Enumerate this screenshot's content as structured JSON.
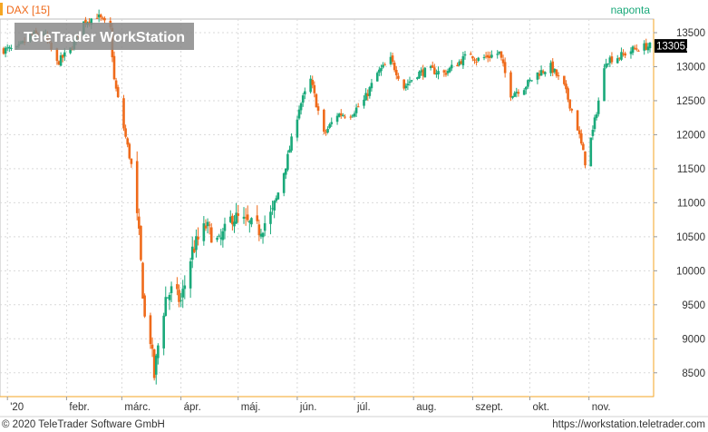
{
  "header": {
    "symbol": "DAX [15]",
    "period": "naponta",
    "watermark": "TeleTrader WorkStation"
  },
  "footer": {
    "copyright": "© 2020 TeleTrader Software GmbH",
    "url": "https://workstation.teletrader.com"
  },
  "colors": {
    "up": "#1aa97a",
    "down": "#ef6a1a",
    "accent": "#f5a623",
    "grid": "#d9d9d9",
    "axis_text": "#333333",
    "watermark_bg": "#8a8a8a",
    "last_price_bg": "#000000"
  },
  "chart_data": {
    "type": "candlestick",
    "y_ticks": [
      8500,
      9000,
      9500,
      10000,
      10500,
      11000,
      11500,
      12000,
      12500,
      13000,
      13500
    ],
    "y_tick_labels": [
      "8500",
      "9000",
      "9500",
      "10000",
      "10500",
      "11000",
      "11500",
      "12000",
      "12500",
      "13000",
      "13500"
    ],
    "ylim": [
      8150,
      13700
    ],
    "x_labels": [
      {
        "label": "'20",
        "date": "2020-01-01"
      },
      {
        "label": "febr.",
        "date": "2020-02-01"
      },
      {
        "label": "márc.",
        "date": "2020-03-01"
      },
      {
        "label": "ápr.",
        "date": "2020-04-01"
      },
      {
        "label": "máj.",
        "date": "2020-05-01"
      },
      {
        "label": "jún.",
        "date": "2020-06-01"
      },
      {
        "label": "júl.",
        "date": "2020-07-01"
      },
      {
        "label": "aug.",
        "date": "2020-08-01"
      },
      {
        "label": "szept.",
        "date": "2020-09-01"
      },
      {
        "label": "okt.",
        "date": "2020-10-01"
      },
      {
        "label": "nov.",
        "date": "2020-11-01"
      }
    ],
    "xlim": [
      "2019-12-30",
      "2020-12-03"
    ],
    "last_price": 13305.1,
    "last_price_label": "13305,1",
    "grid": true,
    "close_path": [
      [
        "2019-12-30",
        13250
      ],
      [
        "2020-01-06",
        13250
      ],
      [
        "2020-01-13",
        13450
      ],
      [
        "2020-01-20",
        13500
      ],
      [
        "2020-01-27",
        13050
      ],
      [
        "2020-02-03",
        13250
      ],
      [
        "2020-02-10",
        13650
      ],
      [
        "2020-02-17",
        13750
      ],
      [
        "2020-02-24",
        13550
      ],
      [
        "2020-02-26",
        12800
      ],
      [
        "2020-03-02",
        12100
      ],
      [
        "2020-03-06",
        11550
      ],
      [
        "2020-03-10",
        10500
      ],
      [
        "2020-03-13",
        9300
      ],
      [
        "2020-03-16",
        9000
      ],
      [
        "2020-03-18",
        8450
      ],
      [
        "2020-03-20",
        8900
      ],
      [
        "2020-03-24",
        9600
      ],
      [
        "2020-03-27",
        9700
      ],
      [
        "2020-04-01",
        9550
      ],
      [
        "2020-04-07",
        10300
      ],
      [
        "2020-04-14",
        10650
      ],
      [
        "2020-04-21",
        10400
      ],
      [
        "2020-04-28",
        10800
      ],
      [
        "2020-05-05",
        10700
      ],
      [
        "2020-05-12",
        10600
      ],
      [
        "2020-05-19",
        10850
      ],
      [
        "2020-05-26",
        11550
      ],
      [
        "2020-06-02",
        12400
      ],
      [
        "2020-06-08",
        12800
      ],
      [
        "2020-06-15",
        12000
      ],
      [
        "2020-06-22",
        12300
      ],
      [
        "2020-06-29",
        12300
      ],
      [
        "2020-07-06",
        12500
      ],
      [
        "2020-07-13",
        12900
      ],
      [
        "2020-07-20",
        13100
      ],
      [
        "2020-07-27",
        12700
      ],
      [
        "2020-08-03",
        12900
      ],
      [
        "2020-08-10",
        12950
      ],
      [
        "2020-08-17",
        12900
      ],
      [
        "2020-08-24",
        13050
      ],
      [
        "2020-08-31",
        13200
      ],
      [
        "2020-09-03",
        13100
      ],
      [
        "2020-09-09",
        13150
      ],
      [
        "2020-09-15",
        13200
      ],
      [
        "2020-09-21",
        12600
      ],
      [
        "2020-09-28",
        12700
      ],
      [
        "2020-10-05",
        12900
      ],
      [
        "2020-10-12",
        13000
      ],
      [
        "2020-10-19",
        12700
      ],
      [
        "2020-10-26",
        12100
      ],
      [
        "2020-10-30",
        11600
      ],
      [
        "2020-11-03",
        12050
      ],
      [
        "2020-11-06",
        12500
      ],
      [
        "2020-11-10",
        13100
      ],
      [
        "2020-11-17",
        13150
      ],
      [
        "2020-11-24",
        13250
      ],
      [
        "2020-12-01",
        13300
      ]
    ]
  }
}
